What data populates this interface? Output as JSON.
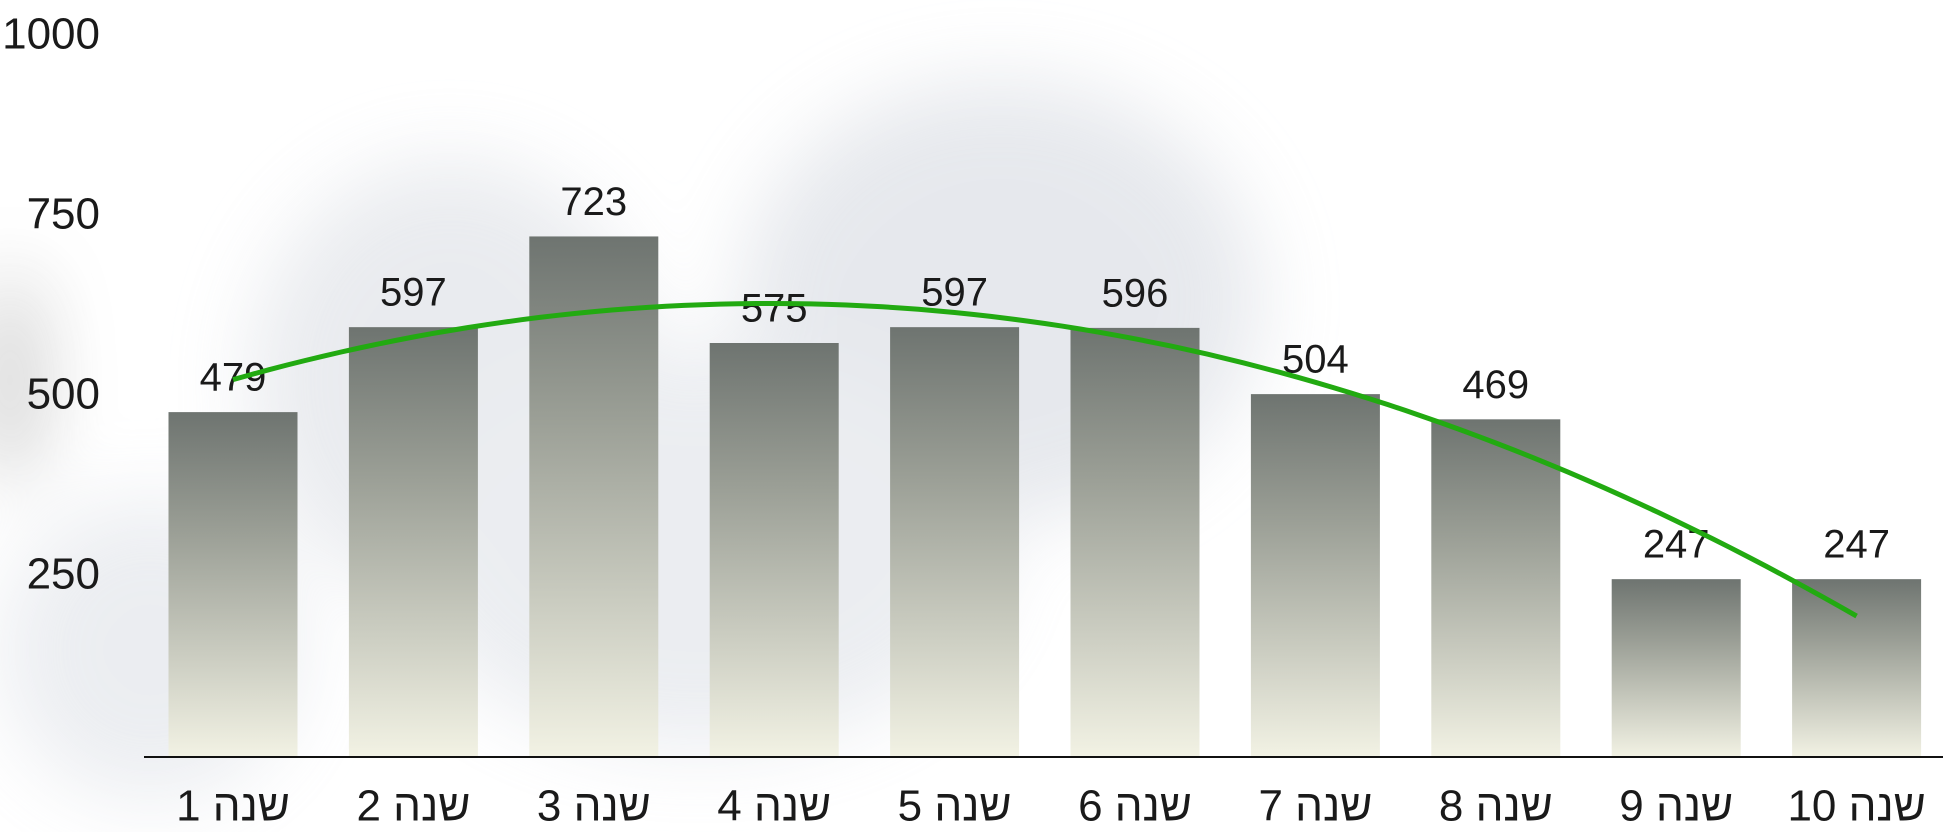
{
  "chart_data": {
    "type": "bar",
    "categories": [
      "שנה 1",
      "שנה 2",
      "שנה 3",
      "שנה 4",
      "שנה 5",
      "שנה 6",
      "שנה 7",
      "שנה 8",
      "שנה 9",
      "שנה 10"
    ],
    "values": [
      479,
      597,
      723,
      575,
      597,
      596,
      504,
      469,
      247,
      247
    ],
    "gradient": [
      "#6e7470",
      "#9b9f96",
      "#f2f2e4"
    ],
    "ylim": [
      0,
      1000
    ],
    "yticks": [
      250,
      500,
      750,
      1000
    ],
    "trendline": "polynomial",
    "trendline_color": "#22aa11"
  }
}
